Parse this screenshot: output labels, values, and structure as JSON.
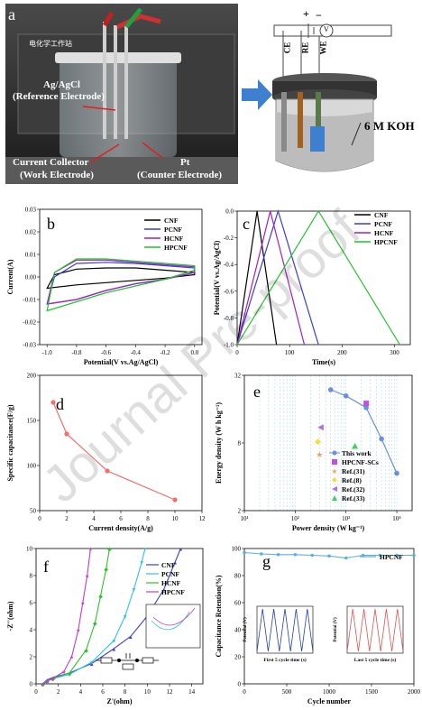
{
  "panel_labels": {
    "a": "a",
    "b": "b",
    "c": "c",
    "d": "d",
    "e": "e",
    "f": "f",
    "g": "g"
  },
  "photo": {
    "ref_label_1": "Ag/AgCl",
    "ref_label_2": "(Reference Electrode)",
    "cc_label_1": "Current Collector",
    "cc_label_2": "(Work Electrode)",
    "pt_label_1": "Pt",
    "pt_label_2": "(Counter Electrode)",
    "device_text": "电化学工作站"
  },
  "schematic": {
    "ce": "CE",
    "re": "RE",
    "we": "WE",
    "v": "V",
    "plus": "+",
    "minus": "−",
    "electrolyte": "6 M KOH"
  },
  "watermark": "Journal Pre-proof",
  "chart_data": [
    {
      "id": "b",
      "type": "line",
      "xlabel": "Potential(V vs.Ag/AgCl)",
      "ylabel": "Current(A)",
      "xlim": [
        -1.05,
        0.05
      ],
      "ylim": [
        -0.03,
        0.03
      ],
      "xticks": [
        "-1.0",
        "-0.8",
        "-0.6",
        "-0.4",
        "-0.2",
        "0.0"
      ],
      "yticks": [
        "-0.03",
        "-0.02",
        "-0.01",
        "0.00",
        "0.01",
        "0.02",
        "0.03"
      ],
      "series": [
        {
          "name": "CNF",
          "color": "#000000",
          "upper": [
            [
              -1,
              -0.005
            ],
            [
              -0.95,
              0.001
            ],
            [
              -0.8,
              0.0035
            ],
            [
              -0.6,
              0.004
            ],
            [
              -0.4,
              0.004
            ],
            [
              -0.2,
              0.003
            ],
            [
              0,
              0.002
            ]
          ],
          "lower": [
            [
              0,
              0.001
            ],
            [
              -0.2,
              -0.0005
            ],
            [
              -0.4,
              -0.0015
            ],
            [
              -0.6,
              -0.0025
            ],
            [
              -0.8,
              -0.0035
            ],
            [
              -1,
              -0.005
            ]
          ]
        },
        {
          "name": "PCNF",
          "color": "#3a3ae0",
          "upper": [
            [
              -1,
              -0.012
            ],
            [
              -0.95,
              0.0
            ],
            [
              -0.8,
              0.006
            ],
            [
              -0.6,
              0.0065
            ],
            [
              -0.4,
              0.006
            ],
            [
              -0.2,
              0.005
            ],
            [
              0,
              0.004
            ]
          ],
          "lower": [
            [
              0,
              0.002
            ],
            [
              -0.2,
              -0.001
            ],
            [
              -0.4,
              -0.003
            ],
            [
              -0.6,
              -0.006
            ],
            [
              -0.8,
              -0.01
            ],
            [
              -1,
              -0.012
            ]
          ]
        },
        {
          "name": "HCNF",
          "color": "#a020c0",
          "upper": [
            [
              -1,
              -0.012
            ],
            [
              -0.95,
              0.002
            ],
            [
              -0.8,
              0.0075
            ],
            [
              -0.6,
              0.0075
            ],
            [
              -0.4,
              0.0065
            ],
            [
              -0.2,
              0.0055
            ],
            [
              0,
              0.0045
            ]
          ],
          "lower": [
            [
              0,
              0.002
            ],
            [
              -0.2,
              -0.001
            ],
            [
              -0.4,
              -0.003
            ],
            [
              -0.6,
              -0.006
            ],
            [
              -0.8,
              -0.01
            ],
            [
              -1,
              -0.012
            ]
          ]
        },
        {
          "name": "HPCNF",
          "color": "#22c22a",
          "upper": [
            [
              -1,
              -0.015
            ],
            [
              -0.95,
              0.002
            ],
            [
              -0.8,
              0.008
            ],
            [
              -0.6,
              0.008
            ],
            [
              -0.4,
              0.007
            ],
            [
              -0.2,
              0.006
            ],
            [
              0,
              0.005
            ]
          ],
          "lower": [
            [
              0,
              0.003
            ],
            [
              -0.2,
              -0.001
            ],
            [
              -0.4,
              -0.004
            ],
            [
              -0.6,
              -0.007
            ],
            [
              -0.8,
              -0.011
            ],
            [
              -1,
              -0.015
            ]
          ]
        }
      ]
    },
    {
      "id": "c",
      "type": "line",
      "xlabel": "Time(s)",
      "ylabel": "Potential(V vs.Ag/AgCl)",
      "xlim": [
        0,
        330
      ],
      "ylim": [
        -1.0,
        0.0
      ],
      "xticks": [
        "0",
        "100",
        "200",
        "300"
      ],
      "yticks": [
        "-1.0",
        "-0.8",
        "-0.6",
        "-0.4",
        "-0.2",
        "0.0"
      ],
      "series": [
        {
          "name": "CNF",
          "color": "#000000",
          "points": [
            [
              0,
              -1
            ],
            [
              38,
              0
            ],
            [
              75,
              -1
            ]
          ]
        },
        {
          "name": "PCNF",
          "color": "#3a3ae0",
          "points": [
            [
              0,
              -1
            ],
            [
              78,
              0
            ],
            [
              155,
              -1
            ]
          ]
        },
        {
          "name": "HCNF",
          "color": "#a020c0",
          "points": [
            [
              0,
              -1
            ],
            [
              63,
              0
            ],
            [
              128,
              -1
            ]
          ]
        },
        {
          "name": "HPCNF",
          "color": "#22c22a",
          "points": [
            [
              0,
              -1
            ],
            [
              155,
              0
            ],
            [
              310,
              -1
            ]
          ]
        }
      ]
    },
    {
      "id": "d",
      "type": "line",
      "xlabel": "Current density(A/g)",
      "ylabel": "Specific capacitance(F/g)",
      "xlim": [
        0,
        12
      ],
      "ylim": [
        50,
        200
      ],
      "xticks": [
        "0",
        "2",
        "4",
        "6",
        "8",
        "10",
        "12"
      ],
      "yticks": [
        "50",
        "100",
        "150",
        "200"
      ],
      "series": [
        {
          "color": "#f07070",
          "points": [
            [
              1,
              170
            ],
            [
              2,
              135
            ],
            [
              5,
              94
            ],
            [
              10,
              62
            ]
          ]
        }
      ]
    },
    {
      "id": "e",
      "type": "scatter",
      "xlabel": "Power density (W kg⁻¹)",
      "ylabel": "Energy density (W h kg⁻¹)",
      "xscale": "log",
      "yscale": "log",
      "xlim": [
        10,
        20000
      ],
      "ylim": [
        2,
        32
      ],
      "xticks": [
        "10¹",
        "10²",
        "10³",
        "10⁴"
      ],
      "yticks": [
        "2",
        "8",
        "32"
      ],
      "series": [
        {
          "name": "This work",
          "color": "#6a8fe0",
          "marker": "circle",
          "line": true,
          "points": [
            [
              500,
              23.8
            ],
            [
              1000,
              21
            ],
            [
              2500,
              16.5
            ],
            [
              5000,
              8.7
            ],
            [
              10000,
              4.3
            ]
          ]
        },
        {
          "name": "HPCNF-SCs",
          "color": "#c050e0",
          "marker": "square",
          "points": [
            [
              2500,
              18
            ]
          ]
        },
        {
          "name": "Ref.(31)",
          "color": "#f0a060",
          "marker": "star",
          "points": [
            [
              300,
              6.3
            ]
          ]
        },
        {
          "name": "Ref.(8)",
          "color": "#f0e040",
          "marker": "diamond",
          "points": [
            [
              280,
              8.2
            ]
          ]
        },
        {
          "name": "Ref.(32)",
          "color": "#b070e0",
          "marker": "triangle-left",
          "points": [
            [
              320,
              11
            ]
          ]
        },
        {
          "name": "Ref.(33)",
          "color": "#40d060",
          "marker": "triangle",
          "points": [
            [
              1500,
              7.5
            ]
          ]
        }
      ]
    },
    {
      "id": "f",
      "type": "line",
      "xlabel": "Z'(ohm)",
      "ylabel": "-Z''(ohm)",
      "xlim": [
        0,
        15
      ],
      "ylim": [
        0,
        10
      ],
      "xticks": [
        "0",
        "2",
        "4",
        "6",
        "8",
        "10",
        "12",
        "14"
      ],
      "yticks": [
        "0",
        "2",
        "4",
        "6",
        "8",
        "10"
      ],
      "series": [
        {
          "name": "CNF",
          "color": "#4040d0",
          "points": [
            [
              0.6,
              0
            ],
            [
              1,
              0.3
            ],
            [
              1.6,
              0.5
            ],
            [
              3,
              0.8
            ],
            [
              5,
              1.5
            ],
            [
              7,
              2.6
            ],
            [
              8.5,
              3.5
            ],
            [
              10,
              5
            ],
            [
              11.5,
              7
            ],
            [
              12.5,
              9
            ],
            [
              13,
              10
            ]
          ]
        },
        {
          "name": "PCNF",
          "color": "#30c0e0",
          "points": [
            [
              0.6,
              0
            ],
            [
              1,
              0.2
            ],
            [
              1.6,
              0.4
            ],
            [
              3,
              0.7
            ],
            [
              5,
              1.6
            ],
            [
              7,
              3.2
            ],
            [
              8,
              5
            ],
            [
              8.8,
              7
            ],
            [
              9.5,
              9
            ],
            [
              9.8,
              10
            ]
          ]
        },
        {
          "name": "HCNF",
          "color": "#30c030",
          "points": [
            [
              0.6,
              0
            ],
            [
              1,
              0.2
            ],
            [
              1.5,
              0.4
            ],
            [
              3,
              0.8
            ],
            [
              4.5,
              2.5
            ],
            [
              5.3,
              4.5
            ],
            [
              5.8,
              6.5
            ],
            [
              6.3,
              8.5
            ],
            [
              6.6,
              10
            ]
          ]
        },
        {
          "name": "HPCNF",
          "color": "#c040c0",
          "points": [
            [
              0.6,
              0
            ],
            [
              1,
              0.2
            ],
            [
              1.5,
              0.4
            ],
            [
              2.5,
              0.9
            ],
            [
              3.2,
              2
            ],
            [
              3.8,
              4
            ],
            [
              4.2,
              6
            ],
            [
              4.6,
              8
            ],
            [
              4.9,
              10
            ]
          ]
        }
      ]
    },
    {
      "id": "g",
      "type": "line",
      "xlabel": "Cycle number",
      "ylabel": "Capacitance Retention(%)",
      "xlim": [
        0,
        2000
      ],
      "ylim": [
        0,
        100
      ],
      "xticks": [
        "0",
        "500",
        "1000",
        "1500",
        "2000"
      ],
      "yticks": [
        "0",
        "20",
        "40",
        "60",
        "80",
        "100"
      ],
      "series": [
        {
          "name": "HPCNF",
          "color": "#5ab0e0",
          "points": [
            [
              0,
              97
            ],
            [
              200,
              96
            ],
            [
              400,
              95.5
            ],
            [
              600,
              95.5
            ],
            [
              800,
              95
            ],
            [
              1000,
              94.5
            ],
            [
              1200,
              93
            ],
            [
              1400,
              95
            ],
            [
              1600,
              95
            ],
            [
              1800,
              95
            ],
            [
              2000,
              95
            ]
          ]
        }
      ],
      "inset_first": {
        "xlabel": "First 5 cycle time (s)",
        "ylabel": "Potential (V)",
        "xticks": [
          "0",
          "50",
          "100",
          "150",
          "200",
          "250"
        ],
        "yticks": [
          "0.0",
          "-0.2",
          "-0.4",
          "-0.6",
          "-0.8",
          "-1.0"
        ]
      },
      "inset_last": {
        "xlabel": "Last 5 cycle time (s)",
        "ylabel": "Potential (V)",
        "xticks": [
          "0",
          "50",
          "100",
          "150",
          "200"
        ],
        "yticks": [
          "0.0",
          "-0.2",
          "-0.4",
          "-0.6",
          "-0.8",
          "-1.0"
        ]
      }
    }
  ]
}
